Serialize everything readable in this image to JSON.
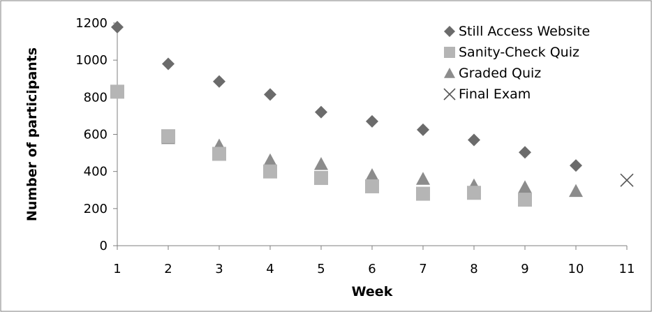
{
  "chart_data": {
    "type": "scatter",
    "title": "",
    "xlabel": "Week",
    "ylabel": "Number of participants",
    "xlim": [
      1,
      11
    ],
    "ylim": [
      0,
      1200
    ],
    "xticks": [
      1,
      2,
      3,
      4,
      5,
      6,
      7,
      8,
      9,
      10,
      11
    ],
    "yticks": [
      0,
      200,
      400,
      600,
      800,
      1000,
      1200
    ],
    "grid": false,
    "legend_position": "top-right",
    "series": [
      {
        "name": "Still Access Website",
        "marker": "diamond",
        "color": "#6b6b6b",
        "x": [
          1,
          2,
          3,
          4,
          5,
          6,
          7,
          8,
          9,
          10
        ],
        "y": [
          1178,
          980,
          885,
          815,
          720,
          670,
          625,
          570,
          503,
          432
        ]
      },
      {
        "name": "Sanity-Check Quiz",
        "marker": "square",
        "color": "#b5b5b5",
        "x": [
          1,
          2,
          3,
          4,
          5,
          6,
          7,
          8,
          9
        ],
        "y": [
          830,
          590,
          495,
          400,
          365,
          320,
          280,
          285,
          248
        ]
      },
      {
        "name": "Graded Quiz",
        "marker": "triangle",
        "color": "#8c8c8c",
        "x": [
          2,
          3,
          4,
          5,
          6,
          7,
          8,
          9,
          10
        ],
        "y": [
          580,
          540,
          460,
          440,
          380,
          360,
          325,
          315,
          295
        ]
      },
      {
        "name": "Final Exam",
        "marker": "x",
        "color": "#555555",
        "x": [
          11
        ],
        "y": [
          353
        ]
      }
    ]
  }
}
